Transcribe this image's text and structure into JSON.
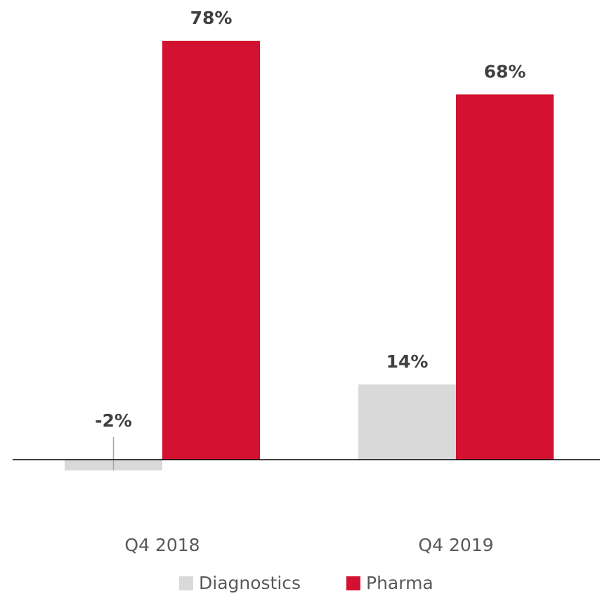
{
  "chart_data": {
    "type": "bar",
    "categories": [
      "Q4 2018",
      "Q4 2019"
    ],
    "series": [
      {
        "name": "Diagnostics",
        "color": "#d9d9d9",
        "values": [
          -2,
          14
        ],
        "value_labels": [
          "-2%",
          "14%"
        ]
      },
      {
        "name": "Pharma",
        "color": "#d31130",
        "values": [
          78,
          68
        ],
        "value_labels": [
          "78%",
          "68%"
        ]
      }
    ]
  }
}
